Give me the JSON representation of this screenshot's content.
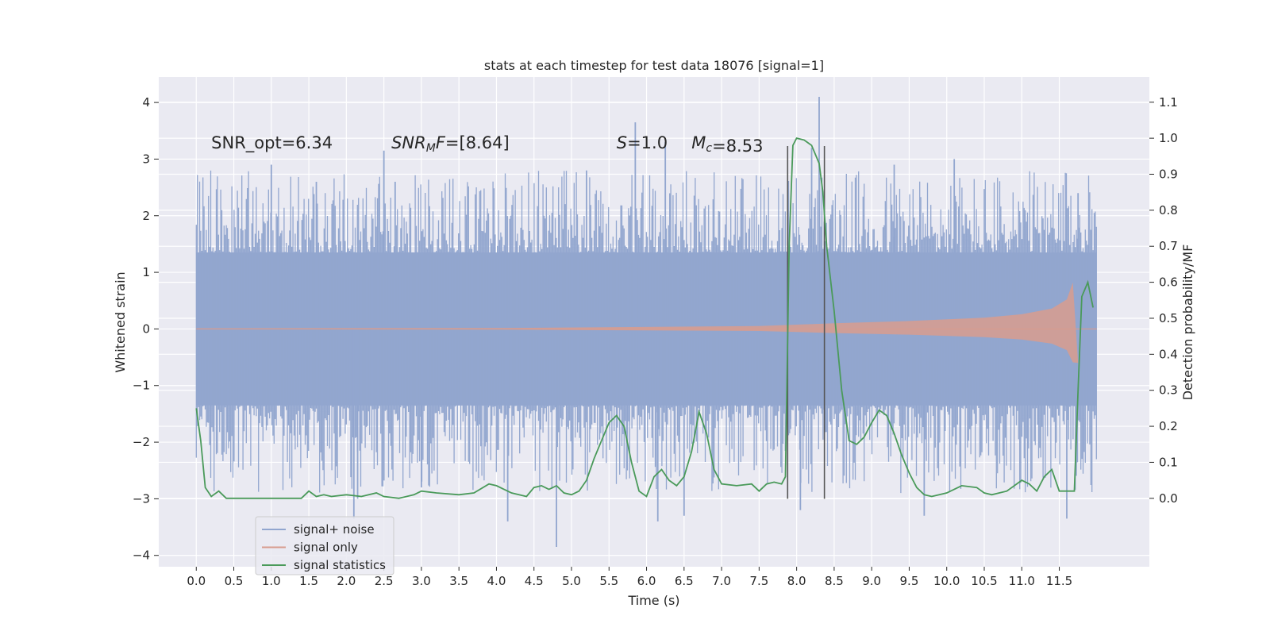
{
  "chart_data": {
    "type": "line",
    "title": "stats at each timestep for test data 18076 [signal=1]",
    "xlabel": "Time (s)",
    "ylabel": "Whitened strain",
    "ylabel_right": "Detection probability/MF",
    "xlim": [
      -0.5,
      12.7
    ],
    "ylim": [
      -4.2,
      4.45
    ],
    "ylim_right": [
      -0.19,
      1.17
    ],
    "x_ticks": [
      0.0,
      0.5,
      1.0,
      1.5,
      2.0,
      2.5,
      3.0,
      3.5,
      4.0,
      4.5,
      5.0,
      5.5,
      6.0,
      6.5,
      7.0,
      7.5,
      8.0,
      8.5,
      9.0,
      9.5,
      10.0,
      10.5,
      11.0,
      11.5
    ],
    "x_tick_labels": [
      "0.0",
      "0.5",
      "1.0",
      "1.5",
      "2.0",
      "2.5",
      "3.0",
      "3.5",
      "4.0",
      "4.5",
      "5.0",
      "5.5",
      "6.0",
      "6.5",
      "7.0",
      "7.5",
      "8.0",
      "8.5",
      "9.0",
      "9.5",
      "10.0",
      "10.5",
      "11.0",
      "11.5"
    ],
    "y_ticks": [
      -4,
      -3,
      -2,
      -1,
      0,
      1,
      2,
      3,
      4
    ],
    "y_tick_labels": [
      "−4",
      "−3",
      "−2",
      "−1",
      "0",
      "1",
      "2",
      "3",
      "4"
    ],
    "y_ticks_right": [
      0.0,
      0.1,
      0.2,
      0.3,
      0.4,
      0.5,
      0.6,
      0.7,
      0.8,
      0.9,
      1.0,
      1.1
    ],
    "y_tick_labels_right": [
      "0.0",
      "0.1",
      "0.2",
      "0.3",
      "0.4",
      "0.5",
      "0.6",
      "0.7",
      "0.8",
      "0.9",
      "1.0",
      "1.1"
    ],
    "grid": true,
    "legend_position": "lower-left",
    "annotations": [
      {
        "text": "SNR_opt=6.34",
        "x": 0.2,
        "y": 3.3
      },
      {
        "text": "SNR_MF=[8.64]",
        "x": 2.6,
        "y": 3.3
      },
      {
        "text": "S=1.0",
        "x": 5.6,
        "y": 3.3
      },
      {
        "text": "M_c=8.53",
        "x": 6.6,
        "y": 3.3
      }
    ],
    "vlines": [
      {
        "x": 7.88,
        "y_top": 3.23,
        "y_bottom": -3.0
      },
      {
        "x": 8.37,
        "y_top": 3.23,
        "y_bottom": -3.0
      }
    ],
    "series": [
      {
        "name": "signal+ noise",
        "color": "#92a6cf",
        "axis": "left",
        "kind": "noise-band",
        "x_range": [
          0.0,
          12.0
        ],
        "core_amplitude": 1.35,
        "typical_spike_amplitude": 2.3,
        "spikes_up": [
          [
            1.0,
            2.9
          ],
          [
            1.6,
            2.6
          ],
          [
            2.5,
            3.15
          ],
          [
            2.65,
            2.6
          ],
          [
            5.2,
            2.8
          ],
          [
            5.85,
            3.65
          ],
          [
            6.25,
            3.3
          ],
          [
            8.3,
            4.1
          ],
          [
            8.2,
            3.2
          ],
          [
            9.3,
            2.9
          ],
          [
            10.1,
            3.0
          ],
          [
            11.75,
            2.4
          ]
        ],
        "spikes_down": [
          [
            2.1,
            -3.35
          ],
          [
            2.15,
            -3.0
          ],
          [
            4.8,
            -3.85
          ],
          [
            4.15,
            -3.4
          ],
          [
            6.15,
            -3.4
          ],
          [
            6.5,
            -3.3
          ],
          [
            8.05,
            -3.2
          ],
          [
            9.7,
            -3.3
          ],
          [
            11.6,
            -3.35
          ],
          [
            3.0,
            -2.8
          ]
        ]
      },
      {
        "name": "signal only",
        "color": "#d89c8e",
        "axis": "left",
        "kind": "chirp-envelope",
        "envelope": [
          [
            0.0,
            0.01
          ],
          [
            4.0,
            0.015
          ],
          [
            7.5,
            0.05
          ],
          [
            8.5,
            0.1
          ],
          [
            9.5,
            0.14
          ],
          [
            10.5,
            0.2
          ],
          [
            11.0,
            0.26
          ],
          [
            11.4,
            0.36
          ],
          [
            11.6,
            0.52
          ],
          [
            11.68,
            0.82
          ],
          [
            11.75,
            -0.6
          ],
          [
            11.85,
            0.0
          ],
          [
            12.0,
            0.0
          ]
        ]
      },
      {
        "name": "signal statistics",
        "color": "#4a9a5a",
        "axis": "right",
        "x": [
          0.0,
          0.06,
          0.12,
          0.2,
          0.3,
          0.4,
          0.5,
          0.7,
          1.0,
          1.2,
          1.4,
          1.5,
          1.6,
          1.7,
          1.8,
          2.0,
          2.2,
          2.4,
          2.5,
          2.7,
          2.9,
          3.0,
          3.2,
          3.5,
          3.7,
          3.9,
          4.0,
          4.2,
          4.4,
          4.5,
          4.6,
          4.7,
          4.8,
          4.9,
          5.0,
          5.1,
          5.2,
          5.3,
          5.4,
          5.5,
          5.6,
          5.7,
          5.8,
          5.9,
          6.0,
          6.1,
          6.2,
          6.3,
          6.4,
          6.5,
          6.6,
          6.7,
          6.8,
          6.9,
          7.0,
          7.2,
          7.4,
          7.5,
          7.6,
          7.7,
          7.8,
          7.85,
          7.9,
          7.95,
          8.0,
          8.1,
          8.2,
          8.3,
          8.35,
          8.4,
          8.5,
          8.6,
          8.7,
          8.8,
          8.9,
          9.0,
          9.1,
          9.2,
          9.3,
          9.4,
          9.5,
          9.6,
          9.7,
          9.8,
          9.9,
          10.0,
          10.2,
          10.4,
          10.5,
          10.6,
          10.8,
          11.0,
          11.1,
          11.2,
          11.3,
          11.4,
          11.5,
          11.6,
          11.7,
          11.75,
          11.8,
          11.88,
          11.95
        ],
        "values": [
          0.25,
          0.16,
          0.03,
          0.005,
          0.02,
          0.0,
          0.0,
          0.0,
          0.0,
          0.0,
          0.0,
          0.02,
          0.005,
          0.01,
          0.005,
          0.01,
          0.005,
          0.015,
          0.005,
          0.0,
          0.01,
          0.02,
          0.015,
          0.01,
          0.015,
          0.04,
          0.035,
          0.015,
          0.005,
          0.03,
          0.035,
          0.025,
          0.035,
          0.015,
          0.01,
          0.02,
          0.05,
          0.11,
          0.16,
          0.21,
          0.23,
          0.2,
          0.1,
          0.02,
          0.005,
          0.06,
          0.08,
          0.05,
          0.035,
          0.06,
          0.13,
          0.24,
          0.18,
          0.08,
          0.04,
          0.035,
          0.04,
          0.02,
          0.04,
          0.045,
          0.04,
          0.06,
          0.7,
          0.98,
          1.0,
          0.995,
          0.98,
          0.93,
          0.85,
          0.7,
          0.52,
          0.3,
          0.16,
          0.15,
          0.17,
          0.21,
          0.245,
          0.23,
          0.18,
          0.12,
          0.07,
          0.03,
          0.01,
          0.005,
          0.01,
          0.015,
          0.035,
          0.03,
          0.015,
          0.01,
          0.02,
          0.05,
          0.04,
          0.02,
          0.06,
          0.08,
          0.02,
          0.02,
          0.02,
          0.3,
          0.56,
          0.6,
          0.53
        ]
      }
    ]
  }
}
